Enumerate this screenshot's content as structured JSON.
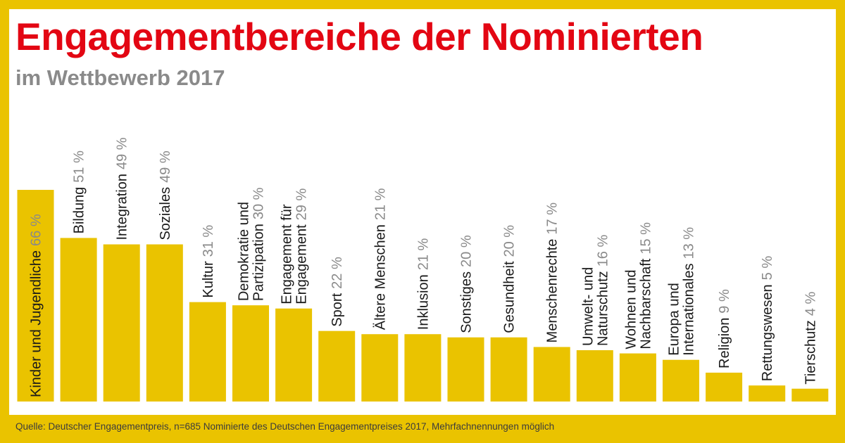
{
  "title": "Engagementbereiche der Nominierten",
  "subtitle": "im Wettbewerb 2017",
  "source": "Quelle: Deutscher Engagementpreis, n=685 Nominierte des Deutschen Engagementpreises 2017, Mehrfachnennungen möglich",
  "colors": {
    "background": "#eac300",
    "bar": "#eac300",
    "title": "#e30613",
    "subtitle": "#8a8a8a",
    "label": "#1a1a1a",
    "value": "#8a8a8a"
  },
  "chart_data": {
    "type": "bar",
    "unit": "%",
    "ylim": [
      0,
      66
    ],
    "grid": false,
    "categories": [
      [
        "Kinder und Jugendliche"
      ],
      [
        "Bildung"
      ],
      [
        "Integration"
      ],
      [
        "Soziales"
      ],
      [
        "Kultur"
      ],
      [
        "Demokratie und",
        "Partizipation"
      ],
      [
        "Engagement für",
        "Engagement"
      ],
      [
        "Sport"
      ],
      [
        "Ältere Menschen"
      ],
      [
        "Inklusion"
      ],
      [
        "Sonstiges"
      ],
      [
        "Gesundheit"
      ],
      [
        "Menschenrechte"
      ],
      [
        "Umwelt- und",
        "Naturschutz"
      ],
      [
        "Wohnen und",
        "Nachbarschaft"
      ],
      [
        "Europa und",
        "Internationales"
      ],
      [
        "Religion"
      ],
      [
        "Rettungswesen"
      ],
      [
        "Tierschutz"
      ]
    ],
    "values": [
      66,
      51,
      49,
      49,
      31,
      30,
      29,
      22,
      21,
      21,
      20,
      20,
      17,
      16,
      15,
      13,
      9,
      5,
      4
    ],
    "value_labels": [
      "66 %",
      "51 %",
      "49 %",
      "49 %",
      "31 %",
      "30 %",
      "29 %",
      "22 %",
      "21 %",
      "21 %",
      "20 %",
      "20 %",
      "17 %",
      "16 %",
      "15 %",
      "13 %",
      "9 %",
      "5 %",
      "4 %"
    ]
  }
}
